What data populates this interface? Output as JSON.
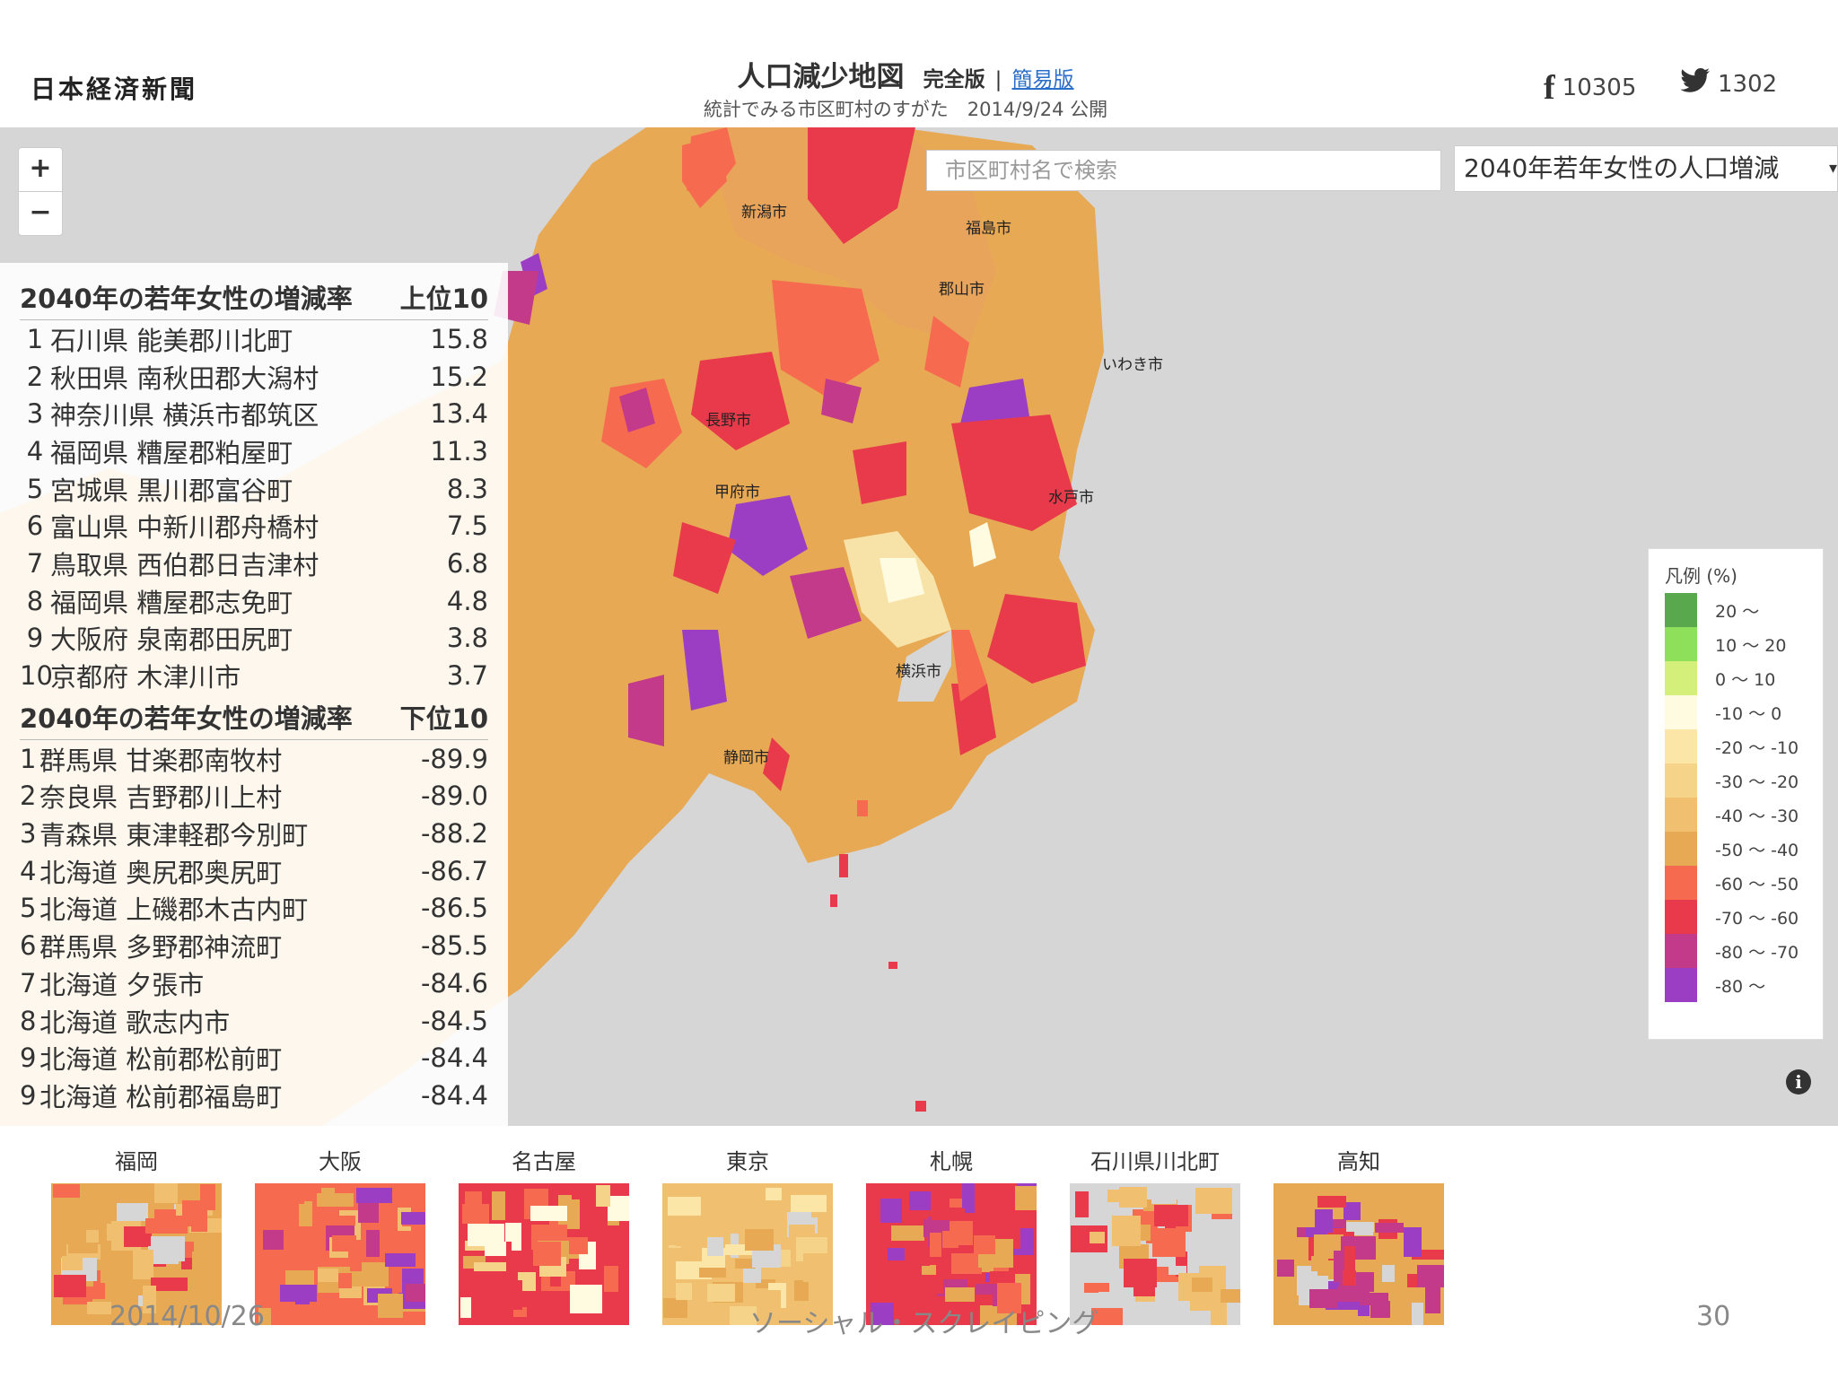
{
  "header": {
    "logo": "日本経済新聞",
    "title": "人口減少地図",
    "full_version": "完全版",
    "separator": "|",
    "simple_version": "簡易版",
    "subtitle": "統計でみる市区町村のすがた　2014/9/24 公開",
    "facebook_count": "10305",
    "twitter_count": "1302",
    "facebook_icon": "facebook-icon",
    "twitter_icon": "twitter-icon"
  },
  "map": {
    "zoom_in": "+",
    "zoom_out": "−",
    "search_placeholder": "市区町村名で検索",
    "selected_indicator": "2040年若年女性の人口増減",
    "select_caret": "▾",
    "city_labels": [
      "新潟市",
      "福島市",
      "郡山市",
      "いわき市",
      "長野市",
      "甲府市",
      "水戸市",
      "横浜市",
      "静岡市"
    ],
    "info": "i"
  },
  "ranking": {
    "top_title": "2040年の若年女性の増減率",
    "top_badge": "上位10",
    "top": [
      {
        "rank": "1",
        "name": "石川県 能美郡川北町",
        "value": "15.8"
      },
      {
        "rank": "2",
        "name": "秋田県 南秋田郡大潟村",
        "value": "15.2"
      },
      {
        "rank": "3",
        "name": "神奈川県 横浜市都筑区",
        "value": "13.4"
      },
      {
        "rank": "4",
        "name": "福岡県 糟屋郡粕屋町",
        "value": "11.3"
      },
      {
        "rank": "5",
        "name": "宮城県 黒川郡富谷町",
        "value": "8.3"
      },
      {
        "rank": "6",
        "name": "富山県 中新川郡舟橋村",
        "value": "7.5"
      },
      {
        "rank": "7",
        "name": "鳥取県 西伯郡日吉津村",
        "value": "6.8"
      },
      {
        "rank": "8",
        "name": "福岡県 糟屋郡志免町",
        "value": "4.8"
      },
      {
        "rank": "9",
        "name": "大阪府 泉南郡田尻町",
        "value": "3.8"
      },
      {
        "rank": "10",
        "name": "京都府 木津川市",
        "value": "3.7"
      }
    ],
    "bottom_title": "2040年の若年女性の増減率",
    "bottom_badge": "下位10",
    "bottom": [
      {
        "rank": "1",
        "name": "群馬県 甘楽郡南牧村",
        "value": "-89.9"
      },
      {
        "rank": "2",
        "name": "奈良県 吉野郡川上村",
        "value": "-89.0"
      },
      {
        "rank": "3",
        "name": "青森県 東津軽郡今別町",
        "value": "-88.2"
      },
      {
        "rank": "4",
        "name": "北海道 奥尻郡奥尻町",
        "value": "-86.7"
      },
      {
        "rank": "5",
        "name": "北海道 上磯郡木古内町",
        "value": "-86.5"
      },
      {
        "rank": "6",
        "name": "群馬県 多野郡神流町",
        "value": "-85.5"
      },
      {
        "rank": "7",
        "name": "北海道 夕張市",
        "value": "-84.6"
      },
      {
        "rank": "8",
        "name": "北海道 歌志内市",
        "value": "-84.5"
      },
      {
        "rank": "9",
        "name": "北海道 松前郡松前町",
        "value": "-84.4"
      },
      {
        "rank": "9",
        "name": "北海道 松前郡福島町",
        "value": "-84.4"
      }
    ]
  },
  "legend": {
    "title": "凡例 (%)",
    "items": [
      {
        "label": "20 ～",
        "color": "#5aa84e"
      },
      {
        "label": "10 ～ 20",
        "color": "#8ee05a"
      },
      {
        "label": "0 ～ 10",
        "color": "#d4f07a"
      },
      {
        "label": "-10 ～ 0",
        "color": "#fffbe0"
      },
      {
        "label": "-20 ～ -10",
        "color": "#fbe6a8"
      },
      {
        "label": "-30 ～ -20",
        "color": "#f5d48a"
      },
      {
        "label": "-40 ～ -30",
        "color": "#f0c070"
      },
      {
        "label": "-50 ～ -40",
        "color": "#e8a955"
      },
      {
        "label": "-60 ～ -50",
        "color": "#f66a50"
      },
      {
        "label": "-70 ～ -60",
        "color": "#e83a4a"
      },
      {
        "label": "-80 ～ -70",
        "color": "#c43a8a"
      },
      {
        "label": "-80 ～",
        "color": "#9b3ec4"
      }
    ]
  },
  "thumbnails": [
    "福岡",
    "大阪",
    "名古屋",
    "東京",
    "札幌",
    "石川県川北町",
    "高知"
  ],
  "footer": {
    "date": "2014/10/26",
    "title": "ソーシャル・スクレイピング",
    "page": "30"
  }
}
